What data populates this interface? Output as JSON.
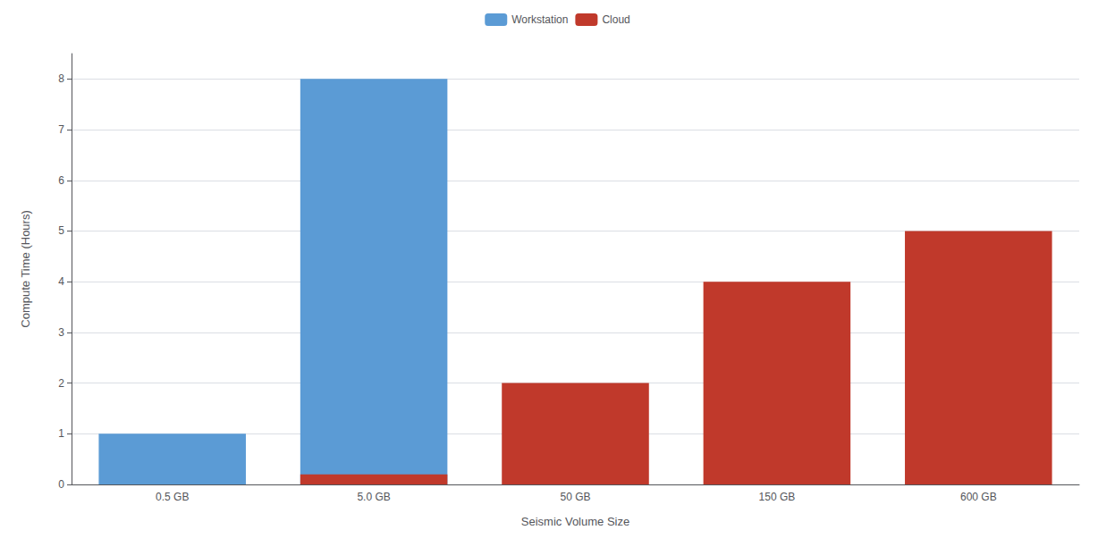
{
  "chart_data": {
    "type": "bar",
    "categories": [
      "0.5 GB",
      "5.0 GB",
      "50 GB",
      "150 GB",
      "600 GB"
    ],
    "series": [
      {
        "name": "Workstation",
        "color": "#5b9bd5",
        "values": [
          1,
          8,
          null,
          null,
          null
        ]
      },
      {
        "name": "Cloud",
        "color": "#c0392b",
        "values": [
          null,
          0.2,
          2,
          4,
          5
        ]
      }
    ],
    "xlabel": "Seismic Volume Size",
    "ylabel": "Compute Time (Hours)",
    "ylim": [
      0,
      8.5
    ],
    "yticks": [
      0,
      1,
      2,
      3,
      4,
      5,
      6,
      7,
      8
    ],
    "grid": true,
    "legend": "top"
  }
}
